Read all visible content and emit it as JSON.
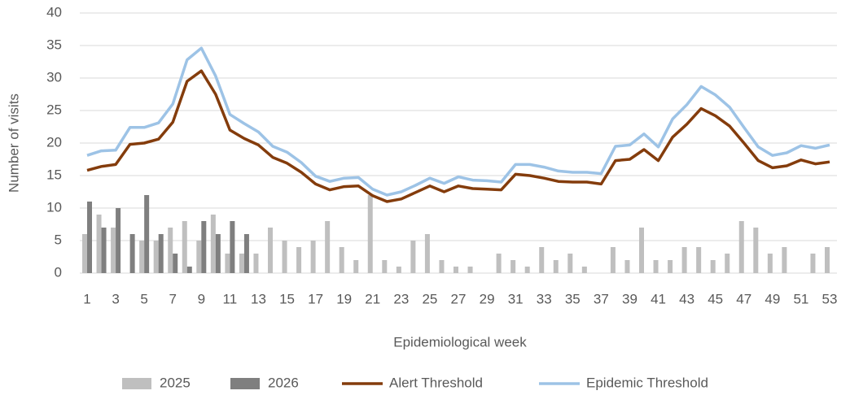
{
  "chart_data": {
    "type": "bar-line",
    "y_label": "Number of visits",
    "x_label": "Epidemiological week",
    "categories": [
      1,
      null,
      3,
      null,
      5,
      null,
      7,
      null,
      9,
      null,
      11,
      null,
      13,
      null,
      15,
      null,
      17,
      null,
      19,
      null,
      21,
      null,
      23,
      null,
      25,
      null,
      27,
      null,
      29,
      null,
      31,
      null,
      33,
      null,
      35,
      null,
      37,
      null,
      39,
      null,
      41,
      null,
      43,
      null,
      45,
      null,
      47,
      null,
      49,
      null,
      51,
      null,
      53
    ],
    "ylim": [
      0,
      40
    ],
    "yticks": [
      0,
      5,
      10,
      15,
      20,
      25,
      30,
      35,
      40
    ],
    "grid": true,
    "legend": "bottom",
    "series": [
      {
        "name": "2025",
        "kind": "bar",
        "color": "#bfbfbf",
        "values": [
          6,
          9,
          7,
          0,
          5,
          5,
          7,
          8,
          5,
          9,
          3,
          3,
          3,
          7,
          5,
          4,
          5,
          8,
          4,
          2,
          12,
          2,
          1,
          5,
          6,
          2,
          1,
          1,
          0,
          3,
          2,
          1,
          4,
          2,
          3,
          1,
          0,
          4,
          2,
          7,
          2,
          2,
          4,
          4,
          2,
          3,
          8,
          7,
          3,
          4,
          0,
          3,
          4
        ]
      },
      {
        "name": "2026",
        "kind": "bar",
        "color": "#7f7f7f",
        "values": [
          11,
          7,
          10,
          6,
          12,
          6,
          3,
          1,
          8,
          6,
          8,
          6,
          null,
          null,
          null,
          null,
          null,
          null,
          null,
          null,
          null,
          null,
          null,
          null,
          null,
          null,
          null,
          null,
          null,
          null,
          null,
          null,
          null,
          null,
          null,
          null,
          null,
          null,
          null,
          null,
          null,
          null,
          null,
          null,
          null,
          null,
          null,
          null,
          null,
          null,
          null,
          null,
          null
        ]
      },
      {
        "name": "Alert Threshold",
        "kind": "line",
        "color": "#843c0c",
        "values": [
          15.8,
          16.4,
          16.7,
          19.8,
          20,
          20.6,
          23.2,
          29.5,
          31.1,
          27.5,
          22,
          20.7,
          19.7,
          17.8,
          16.9,
          15.5,
          13.7,
          12.8,
          13.3,
          13.4,
          11.9,
          11.0,
          11.4,
          12.4,
          13.4,
          12.5,
          13.4,
          13.0,
          12.9,
          12.8,
          15.2,
          15.0,
          14.6,
          14.1,
          14.0,
          14.0,
          13.7,
          17.3,
          17.5,
          19.0,
          17.3,
          20.9,
          22.9,
          25.3,
          24.2,
          22.6,
          20.0,
          17.3,
          16.2,
          16.5,
          17.4,
          16.8,
          17.1
        ]
      },
      {
        "name": "Epidemic Threshold",
        "kind": "line",
        "color": "#9dc3e6",
        "values": [
          18.1,
          18.8,
          18.9,
          22.4,
          22.4,
          23.1,
          26.0,
          32.8,
          34.6,
          30.3,
          24.4,
          23.0,
          21.7,
          19.5,
          18.6,
          17.0,
          14.9,
          14.1,
          14.6,
          14.7,
          12.9,
          12.0,
          12.5,
          13.5,
          14.6,
          13.8,
          14.8,
          14.3,
          14.2,
          14.0,
          16.7,
          16.7,
          16.3,
          15.7,
          15.5,
          15.5,
          15.3,
          19.5,
          19.7,
          21.4,
          19.4,
          23.7,
          25.9,
          28.7,
          27.4,
          25.5,
          22.4,
          19.4,
          18.1,
          18.5,
          19.6,
          19.2,
          19.7
        ]
      }
    ]
  }
}
